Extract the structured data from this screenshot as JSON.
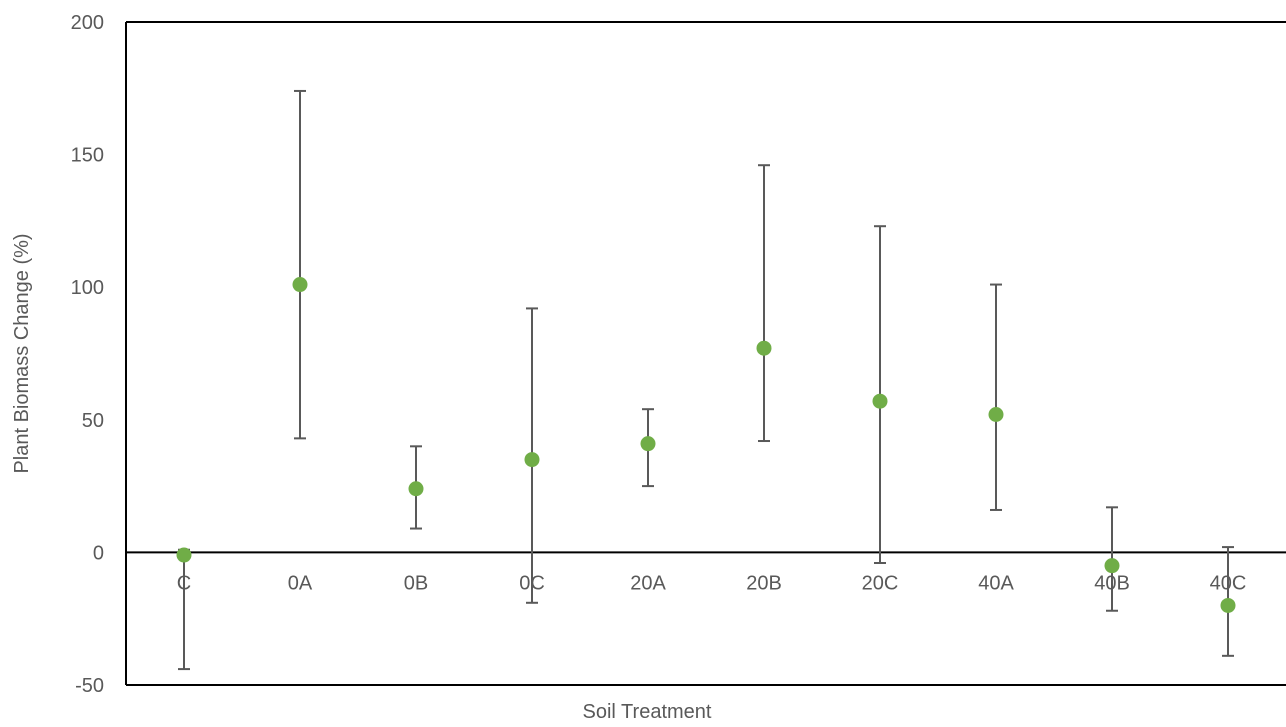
{
  "chart_data": {
    "type": "scatter",
    "title": "",
    "xlabel": "Soil Treatment",
    "ylabel": "Plant Biomass Change (%)",
    "ylim": [
      -50,
      200
    ],
    "yticks": [
      -50,
      0,
      50,
      100,
      150,
      200
    ],
    "categories": [
      "C",
      "0A",
      "0B",
      "0C",
      "20A",
      "20B",
      "20C",
      "40A",
      "40B",
      "40C"
    ],
    "series": [
      {
        "values": [
          -1,
          101,
          24,
          35,
          41,
          77,
          57,
          52,
          -5,
          -20
        ],
        "error_low": [
          -44,
          43,
          9,
          -19,
          25,
          42,
          -4,
          16,
          -22,
          -39
        ],
        "error_high": [
          1,
          174,
          40,
          92,
          54,
          146,
          123,
          101,
          17,
          2
        ]
      }
    ],
    "grid": false,
    "legend": "none",
    "colors": {
      "marker": "#70ad47",
      "errorbar": "#595959",
      "axis": "#000000",
      "text": "#595959"
    }
  }
}
